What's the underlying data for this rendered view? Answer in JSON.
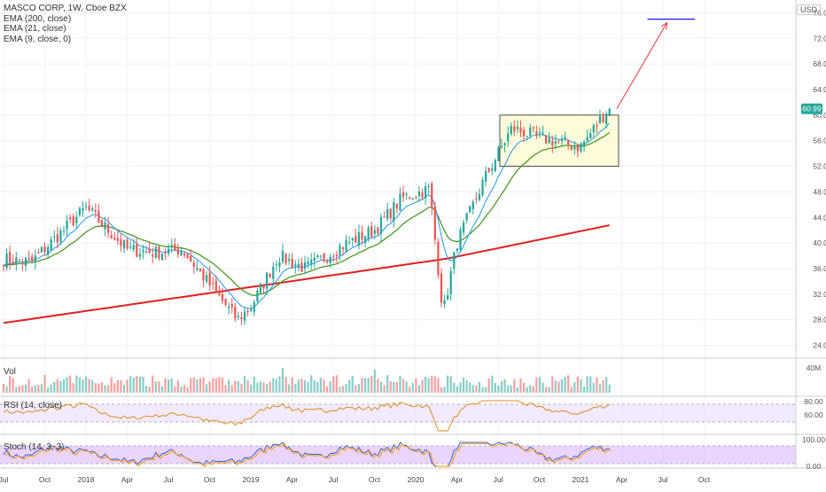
{
  "header": {
    "title": "MASCO CORP, 1W, Cboe BZX",
    "indicators": [
      "EMA (200, close)",
      "EMA (21, close)",
      "EMA (9, close, 0)"
    ],
    "currency": "USD",
    "last_price": "60.99"
  },
  "panes": {
    "volume_label": "Vol",
    "volume_axis_label": "40M",
    "rsi_label": "RSI (14, close)",
    "rsi_ticks": [
      "80.00",
      "60.00"
    ],
    "stoch_label": "Stoch (14, 3, 3)",
    "stoch_ticks": [
      "100.00",
      "0.00"
    ]
  },
  "colors": {
    "up": "#26a69a",
    "down": "#ef5350",
    "ema200": "#e02020",
    "ema21": "#4c9a2a",
    "ema9": "#2196f3",
    "box_fill": "#fffbcc",
    "target_line": "#1a1ae0",
    "arrow": "#e53935",
    "rsi_band": "#e9ddff",
    "stoch_band": "#d9b3ff"
  },
  "chart_data": {
    "type": "candlestick",
    "price_ticks": [
      "76.00",
      "72.00",
      "68.00",
      "64.00",
      "60.00",
      "56.00",
      "52.00",
      "48.00",
      "44.00",
      "40.00",
      "36.00",
      "32.00",
      "28.00",
      "24.00"
    ],
    "x_ticks": [
      "Jul",
      "Oct",
      "2018",
      "Apr",
      "Jul",
      "Oct",
      "2019",
      "Apr",
      "Jul",
      "Oct",
      "2020",
      "Apr",
      "Jul",
      "Oct",
      "2021",
      "Apr",
      "Jul",
      "Oct"
    ],
    "ylim": [
      22,
      78
    ],
    "anchors": [
      {
        "date": "Jul 2017",
        "price": 37.5
      },
      {
        "date": "Sep 2017",
        "price": 37.0
      },
      {
        "date": "Jan 2018",
        "price": 45.5
      },
      {
        "date": "Apr 2018",
        "price": 39.0
      },
      {
        "date": "Jun 2018",
        "price": 38.5
      },
      {
        "date": "Aug 2018",
        "price": 39.0
      },
      {
        "date": "Dec 2018",
        "price": 28.0
      },
      {
        "date": "Jan 2019",
        "price": 30.0
      },
      {
        "date": "Mar 2019",
        "price": 38.0
      },
      {
        "date": "May 2019",
        "price": 36.0
      },
      {
        "date": "Aug 2019",
        "price": 40.0
      },
      {
        "date": "Oct 2019",
        "price": 42.0
      },
      {
        "date": "Dec 2019",
        "price": 47.0
      },
      {
        "date": "Feb 2020",
        "price": 48.5
      },
      {
        "date": "Mar 2020",
        "price": 29.0
      },
      {
        "date": "Apr 2020",
        "price": 40.0
      },
      {
        "date": "Jun 2020",
        "price": 50.0
      },
      {
        "date": "Aug 2020",
        "price": 58.0
      },
      {
        "date": "Oct 2020",
        "price": 56.5
      },
      {
        "date": "Jan 2021",
        "price": 55.0
      },
      {
        "date": "Mar 2021",
        "price": 60.99
      }
    ],
    "consolidation_box": {
      "from": "Jul 2020",
      "to": "Mar 2021",
      "top": 60.0,
      "bottom": 52.0
    },
    "target": {
      "price": 75.0,
      "from": "Jun 2021",
      "to": "Sep 2021"
    }
  }
}
